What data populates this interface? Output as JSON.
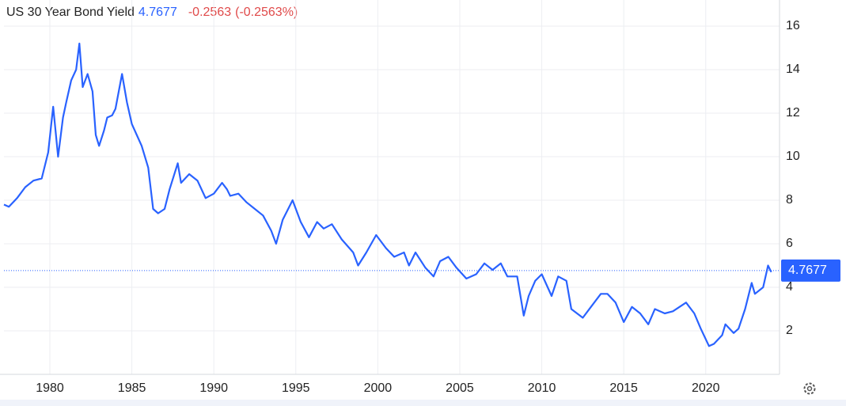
{
  "chart_data": {
    "type": "line",
    "title": "US 30 Year Bond Yield",
    "last_value": 4.7677,
    "change": -0.2563,
    "change_percent_label": "(-0.2563%)",
    "xlim": [
      1977.2,
      2024.5
    ],
    "ylim": [
      0,
      17.2
    ],
    "xticks": [
      1980,
      1985,
      1990,
      1995,
      2000,
      2005,
      2010,
      2015,
      2020
    ],
    "yticks": [
      2,
      4,
      6,
      8,
      10,
      12,
      14,
      16
    ],
    "grid": true,
    "series": [
      {
        "color": "#2962ff",
        "x": [
          1977.2,
          1977.5,
          1978.0,
          1978.5,
          1979.0,
          1979.5,
          1979.9,
          1980.2,
          1980.5,
          1980.8,
          1981.0,
          1981.3,
          1981.6,
          1981.8,
          1982.0,
          1982.3,
          1982.6,
          1982.8,
          1983.0,
          1983.3,
          1983.5,
          1983.8,
          1984.0,
          1984.4,
          1984.7,
          1985.0,
          1985.3,
          1985.6,
          1986.0,
          1986.3,
          1986.6,
          1987.0,
          1987.3,
          1987.8,
          1988.0,
          1988.5,
          1989.0,
          1989.5,
          1990.0,
          1990.5,
          1990.8,
          1991.0,
          1991.5,
          1992.0,
          1992.5,
          1993.0,
          1993.5,
          1993.8,
          1994.2,
          1994.8,
          1995.3,
          1995.8,
          1996.3,
          1996.7,
          1997.2,
          1997.8,
          1998.5,
          1998.8,
          1999.3,
          1999.9,
          2000.5,
          2001.0,
          2001.6,
          2001.9,
          2002.3,
          2002.9,
          2003.4,
          2003.8,
          2004.3,
          2004.8,
          2005.4,
          2006.0,
          2006.5,
          2007.0,
          2007.5,
          2007.9,
          2008.5,
          2008.9,
          2009.2,
          2009.6,
          2010.0,
          2010.6,
          2011.0,
          2011.5,
          2011.8,
          2012.5,
          2013.0,
          2013.6,
          2014.0,
          2014.5,
          2015.0,
          2015.5,
          2016.0,
          2016.5,
          2016.9,
          2017.5,
          2018.0,
          2018.8,
          2019.3,
          2019.7,
          2020.2,
          2020.5,
          2021.0,
          2021.2,
          2021.7,
          2022.0,
          2022.4,
          2022.8,
          2023.0,
          2023.5,
          2023.8,
          2024.0
        ],
        "values": [
          7.8,
          7.7,
          8.1,
          8.6,
          8.9,
          9.0,
          10.2,
          12.3,
          10.0,
          11.8,
          12.5,
          13.5,
          14.0,
          15.2,
          13.2,
          13.8,
          13.0,
          11.0,
          10.5,
          11.2,
          11.8,
          11.9,
          12.2,
          13.8,
          12.5,
          11.5,
          11.0,
          10.5,
          9.5,
          7.6,
          7.4,
          7.6,
          8.5,
          9.7,
          8.8,
          9.2,
          8.9,
          8.1,
          8.3,
          8.8,
          8.5,
          8.2,
          8.3,
          7.9,
          7.6,
          7.3,
          6.6,
          6.0,
          7.1,
          8.0,
          7.0,
          6.3,
          7.0,
          6.7,
          6.9,
          6.2,
          5.6,
          5.0,
          5.6,
          6.4,
          5.8,
          5.4,
          5.6,
          5.0,
          5.6,
          4.9,
          4.5,
          5.2,
          5.4,
          4.9,
          4.4,
          4.6,
          5.1,
          4.8,
          5.1,
          4.5,
          4.5,
          2.7,
          3.6,
          4.3,
          4.6,
          3.6,
          4.5,
          4.3,
          3.0,
          2.6,
          3.1,
          3.7,
          3.7,
          3.3,
          2.4,
          3.1,
          2.8,
          2.3,
          3.0,
          2.8,
          2.9,
          3.3,
          2.8,
          2.1,
          1.3,
          1.4,
          1.8,
          2.3,
          1.9,
          2.1,
          3.0,
          4.2,
          3.7,
          4.0,
          5.0,
          4.7
        ]
      }
    ]
  }
}
